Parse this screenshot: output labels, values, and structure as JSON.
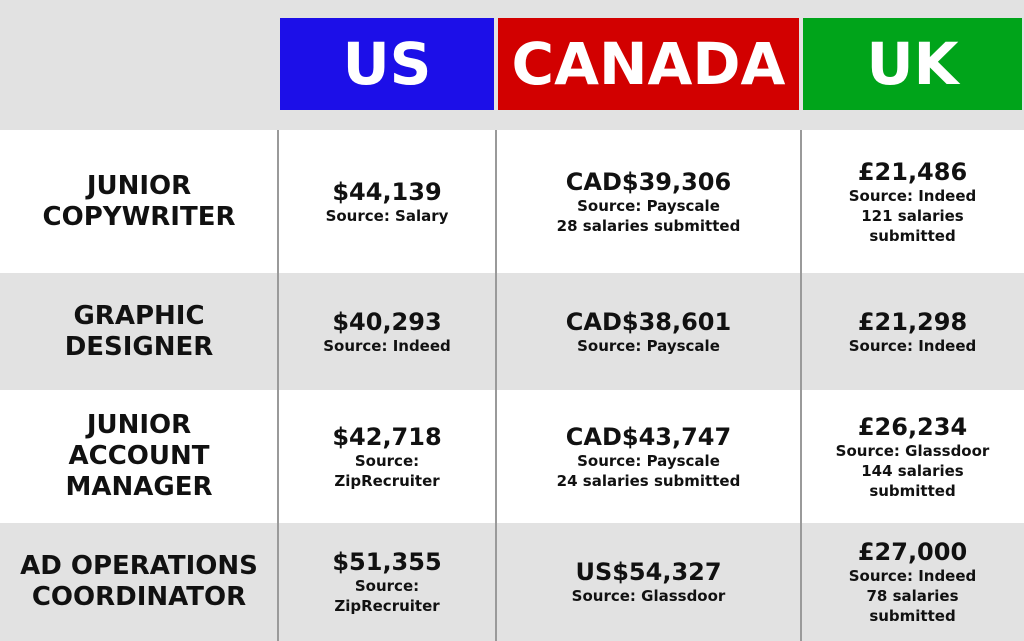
{
  "header": {
    "columns": [
      {
        "name": "US",
        "color": "#1c0fe8"
      },
      {
        "name": "CANADA",
        "color": "#d20000"
      },
      {
        "name": "UK",
        "color": "#00a41a"
      }
    ]
  },
  "table": {
    "rows": [
      {
        "label": "JUNIOR COPYWRITER",
        "cells": [
          {
            "salary": "$44,139",
            "lines": [
              "Source: Salary"
            ]
          },
          {
            "salary": "CAD$39,306",
            "lines": [
              "Source: Payscale",
              "28 salaries submitted"
            ]
          },
          {
            "salary": "£21,486",
            "lines": [
              "Source: Indeed",
              "121 salaries submitted"
            ]
          }
        ]
      },
      {
        "label": "GRAPHIC DESIGNER",
        "cells": [
          {
            "salary": "$40,293",
            "lines": [
              "Source: Indeed"
            ]
          },
          {
            "salary": "CAD$38,601",
            "lines": [
              "Source: Payscale"
            ]
          },
          {
            "salary": "£21,298",
            "lines": [
              "Source: Indeed"
            ]
          }
        ]
      },
      {
        "label": "JUNIOR ACCOUNT MANAGER",
        "cells": [
          {
            "salary": "$42,718",
            "lines": [
              "Source: ZipRecruiter"
            ]
          },
          {
            "salary": "CAD$43,747",
            "lines": [
              "Source: Payscale",
              "24 salaries submitted"
            ]
          },
          {
            "salary": "£26,234",
            "lines": [
              "Source: Glassdoor",
              "144 salaries submitted"
            ]
          }
        ]
      },
      {
        "label": "AD OPERATIONS COORDINATOR",
        "cells": [
          {
            "salary": "$51,355",
            "lines": [
              "Source: ZipRecruiter"
            ]
          },
          {
            "salary": "US$54,327",
            "lines": [
              "Source: Glassdoor"
            ]
          },
          {
            "salary": "£27,000",
            "lines": [
              "Source: Indeed",
              "78 salaries submitted"
            ]
          }
        ]
      }
    ]
  }
}
